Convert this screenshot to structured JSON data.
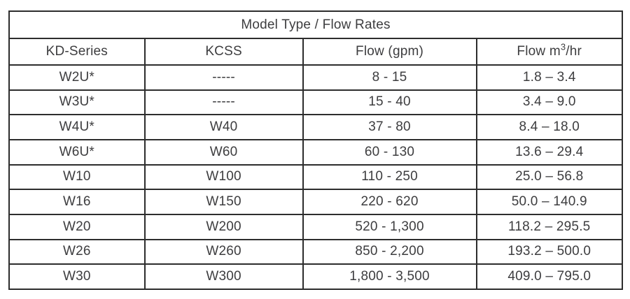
{
  "table": {
    "title": "Model Type / Flow Rates",
    "headers": {
      "kd_series": "KD-Series",
      "kcss": "KCSS",
      "flow_gpm": "Flow (gpm)",
      "flow_m3hr": {
        "prefix": "Flow m",
        "sup": "3",
        "suffix": "/hr"
      }
    },
    "rows": [
      [
        "W2U*",
        "-----",
        "8 - 15",
        "1.8 – 3.4"
      ],
      [
        "W3U*",
        "-----",
        "15 - 40",
        "3.4 – 9.0"
      ],
      [
        "W4U*",
        "W40",
        "37 - 80",
        "8.4 – 18.0"
      ],
      [
        "W6U*",
        "W60",
        "60 - 130",
        "13.6 – 29.4"
      ],
      [
        "W10",
        "W100",
        "110 - 250",
        "25.0 – 56.8"
      ],
      [
        "W16",
        "W150",
        "220 - 620",
        "50.0 – 140.9"
      ],
      [
        "W20",
        "W200",
        "520 - 1,300",
        "118.2 – 295.5"
      ],
      [
        "W26",
        "W260",
        "850 - 2,200",
        "193.2 – 500.0"
      ],
      [
        "W30",
        "W300",
        "1,800 - 3,500",
        "409.0 – 795.0"
      ]
    ],
    "colors": {
      "border": "#2d2d2d",
      "text": "#3d3d3f",
      "background": "#ffffff"
    }
  }
}
